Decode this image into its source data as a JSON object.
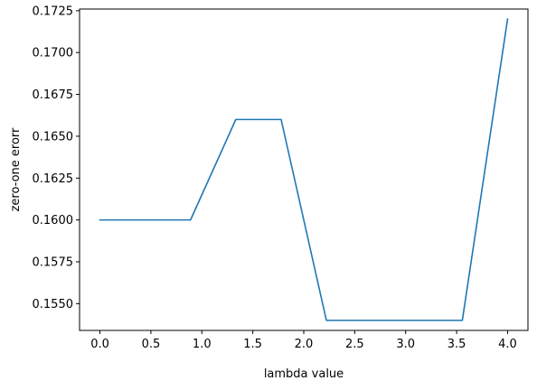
{
  "chart_data": {
    "type": "line",
    "title": "",
    "xlabel": "lambda value",
    "ylabel": "zero-one erorr",
    "xlim": [
      -0.2,
      4.2
    ],
    "ylim": [
      0.1534,
      0.1726
    ],
    "grid": false,
    "legend": "none",
    "x_ticks": [
      0.0,
      0.5,
      1.0,
      1.5,
      2.0,
      2.5,
      3.0,
      3.5,
      4.0
    ],
    "x_tick_labels": [
      "0.0",
      "0.5",
      "1.0",
      "1.5",
      "2.0",
      "2.5",
      "3.0",
      "3.5",
      "4.0"
    ],
    "y_ticks": [
      0.155,
      0.1575,
      0.16,
      0.1625,
      0.165,
      0.1675,
      0.17,
      0.1725
    ],
    "y_tick_labels": [
      "0.1550",
      "0.1575",
      "0.1600",
      "0.1625",
      "0.1650",
      "0.1675",
      "0.1700",
      "0.1725"
    ],
    "series": [
      {
        "color": "#1f77b4",
        "x": [
          0.0,
          0.444,
          0.889,
          1.333,
          1.778,
          2.222,
          2.667,
          3.111,
          3.556,
          4.0
        ],
        "y": [
          0.16,
          0.16,
          0.16,
          0.166,
          0.166,
          0.154,
          0.154,
          0.154,
          0.154,
          0.172
        ]
      }
    ]
  }
}
